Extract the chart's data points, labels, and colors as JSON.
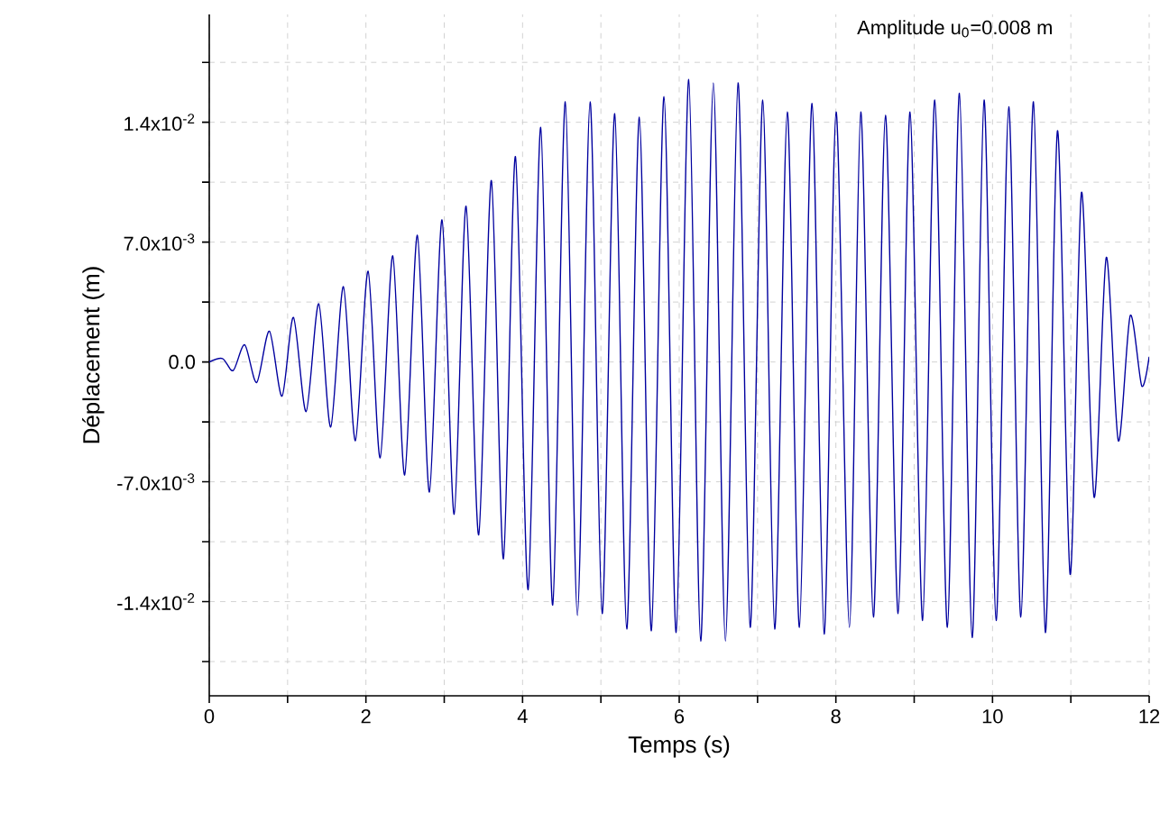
{
  "chart_data": {
    "type": "line",
    "xlabel": "Temps (s)",
    "ylabel": "Déplacement (m)",
    "annotations": [
      "Amplitude u$_{0}$=0.008 m"
    ],
    "xlim": [
      0,
      12
    ],
    "ylim": [
      -0.0195,
      0.0203
    ],
    "xticks": [
      0,
      {
        "value": 1,
        "label": null
      },
      2,
      {
        "value": 3,
        "label": null
      },
      4,
      {
        "value": 5,
        "label": null
      },
      6,
      {
        "value": 7,
        "label": null
      },
      8,
      {
        "value": 9,
        "label": null
      },
      10,
      {
        "value": 11,
        "label": null
      },
      12
    ],
    "yticks": [
      {
        "value": -0.0175,
        "label": null
      },
      {
        "value": -0.014,
        "label": "-1.4x10$^{-2}$"
      },
      {
        "value": -0.0105,
        "label": null
      },
      {
        "value": -0.007,
        "label": "-7.0x10$^{-3}$"
      },
      {
        "value": -0.0035,
        "label": null
      },
      {
        "value": 0,
        "label": "0.0"
      },
      {
        "value": 0.0035,
        "label": null
      },
      {
        "value": 0.007,
        "label": "7.0x10$^{-3}$"
      },
      {
        "value": 0.0105,
        "label": null
      },
      {
        "value": 0.014,
        "label": "1.4x10$^{-2}$"
      },
      {
        "value": 0.0175,
        "label": null
      }
    ],
    "grid": true,
    "marker": "none",
    "series": [
      {
        "color": "#00009f",
        "x": [
          0,
          0.169,
          0.306,
          0.453,
          0.606,
          0.768,
          0.929,
          1.075,
          1.237,
          1.398,
          1.551,
          1.713,
          1.866,
          2.028,
          2.182,
          2.343,
          2.495,
          2.657,
          2.811,
          2.972,
          3.127,
          3.279,
          3.44,
          3.602,
          3.756,
          3.909,
          4.071,
          4.232,
          4.385,
          4.546,
          4.7,
          4.862,
          5.016,
          5.177,
          5.33,
          5.491,
          5.645,
          5.806,
          5.961,
          6.122,
          6.274,
          6.436,
          6.59,
          6.751,
          6.906,
          7.067,
          7.219,
          7.38,
          7.535,
          7.696,
          7.85,
          8.003,
          8.173,
          8.318,
          8.479,
          8.633,
          8.795,
          8.947,
          9.108,
          9.263,
          9.424,
          9.578,
          9.74,
          9.892,
          10.046,
          10.207,
          10.362,
          10.523,
          10.675,
          10.829,
          10.991,
          11.136,
          11.297,
          11.452,
          11.606,
          11.758,
          11.905,
          12.0
        ],
        "values": [
          0,
          0.0002,
          -0.0005,
          0.001,
          -0.0012,
          0.0018,
          -0.002,
          0.0026,
          -0.0029,
          0.0034,
          -0.0038,
          0.0044,
          -0.0046,
          0.0053,
          -0.0056,
          0.0062,
          -0.0066,
          0.0074,
          -0.0076,
          0.0083,
          -0.0089,
          0.0091,
          -0.0101,
          0.0106,
          -0.0115,
          0.012,
          -0.0133,
          0.0137,
          -0.0142,
          0.0152,
          -0.0148,
          0.0152,
          -0.0147,
          0.0145,
          -0.0156,
          0.0143,
          -0.0157,
          0.0155,
          -0.0158,
          0.0165,
          -0.0163,
          0.0163,
          -0.0163,
          0.0163,
          -0.0155,
          0.0153,
          -0.0156,
          0.0146,
          -0.0155,
          0.0151,
          -0.0159,
          0.0146,
          -0.0155,
          0.0146,
          -0.0149,
          0.0144,
          -0.0147,
          0.0146,
          -0.0151,
          0.0153,
          -0.0155,
          0.0157,
          -0.0161,
          0.0153,
          -0.0151,
          0.0149,
          -0.0149,
          0.0152,
          -0.0158,
          0.0135,
          -0.0124,
          0.0099,
          -0.0079,
          0.0061,
          -0.0046,
          0.0027,
          -0.0014,
          0.0003
        ]
      }
    ]
  }
}
